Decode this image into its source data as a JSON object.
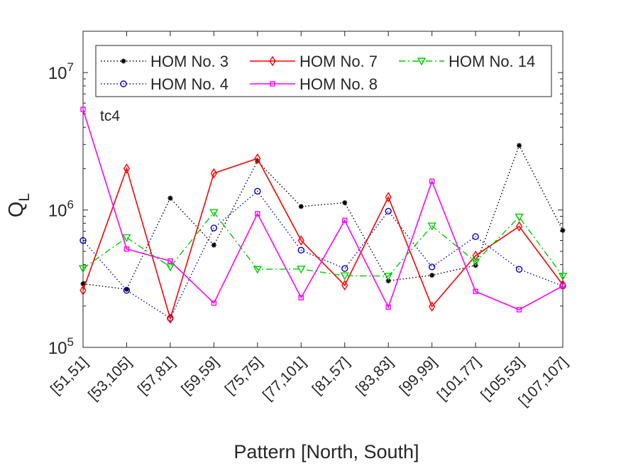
{
  "chart_data": {
    "type": "line",
    "annotation": "tc4",
    "xlabel": "Pattern [North, South]",
    "ylabel": "Q",
    "ylabel_sub": "L",
    "yscale": "log",
    "ylim": [
      100000,
      20000000
    ],
    "yticks": [
      {
        "value": 100000,
        "base": "10",
        "exp": "5"
      },
      {
        "value": 1000000,
        "base": "10",
        "exp": "6"
      },
      {
        "value": 10000000,
        "base": "10",
        "exp": "7"
      }
    ],
    "categories": [
      "[51,51]",
      "[53,105]",
      "[57,81]",
      "[59,59]",
      "[75,75]",
      "[77,101]",
      "[81,57]",
      "[83,83]",
      "[99,99]",
      "[101,77]",
      "[105,53]",
      "[107,107]"
    ],
    "legend": {
      "placement": "top",
      "columns": 3
    },
    "series": [
      {
        "name": "HOM No. 3",
        "color": "#000000",
        "marker": "asterisk",
        "dash": "dotted",
        "values": [
          290000,
          265000,
          1220000,
          555000,
          2270000,
          1060000,
          1130000,
          305000,
          335000,
          395000,
          2950000,
          710000
        ]
      },
      {
        "name": "HOM No. 4",
        "color": "#0000cc",
        "marker": "circle",
        "dash": "dotted",
        "values": [
          600000,
          260000,
          163000,
          740000,
          1370000,
          510000,
          375000,
          980000,
          385000,
          640000,
          370000,
          280000
        ]
      },
      {
        "name": "HOM No. 7",
        "color": "#ff0000",
        "marker": "diamond",
        "dash": "solid",
        "values": [
          260000,
          2000000,
          162000,
          1850000,
          2370000,
          600000,
          283000,
          1240000,
          198000,
          465000,
          760000,
          285000
        ]
      },
      {
        "name": "HOM No. 8",
        "color": "#ff00ff",
        "marker": "square",
        "dash": "solid",
        "values": [
          5400000,
          520000,
          425000,
          210000,
          940000,
          230000,
          840000,
          196000,
          1620000,
          255000,
          188000,
          280000
        ]
      },
      {
        "name": "HOM No. 14",
        "color": "#00cc00",
        "marker": "triangle-down",
        "dash": "dashdot",
        "values": [
          375000,
          630000,
          385000,
          960000,
          370000,
          372000,
          332000,
          330000,
          765000,
          420000,
          890000,
          330000
        ]
      }
    ]
  }
}
